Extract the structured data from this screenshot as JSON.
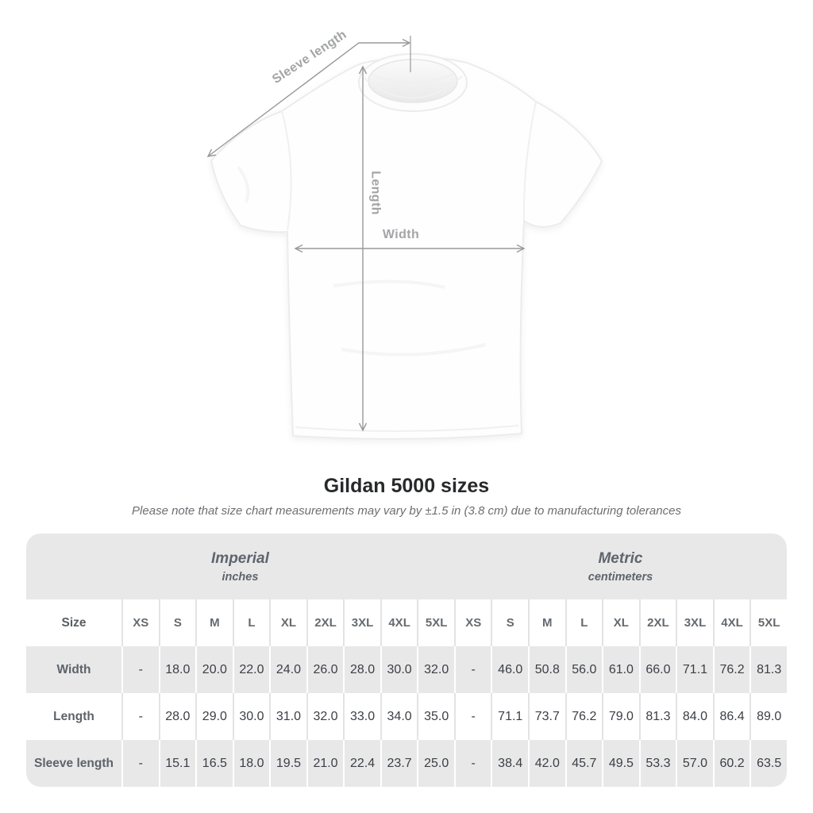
{
  "title": "Gildan 5000 sizes",
  "subtitle": "Please note that size chart measurements may vary by ±1.5 in (3.8 cm) due to manufacturing tolerances",
  "diagram": {
    "sleeve_label": "Sleeve length",
    "length_label": "Length",
    "width_label": "Width"
  },
  "colors": {
    "row_stripe": "#e8e8e8",
    "separator_on_white": "#e3e3e3",
    "separator_on_gray": "#ffffff",
    "header_text": "#5d666c",
    "value_text": "#3b4045",
    "measure_line": "#97999c",
    "measure_label": "#a2a4a6"
  },
  "chart_data": {
    "type": "table",
    "title": "Gildan 5000 sizes",
    "subtitle": "Please note that size chart measurements may vary by ±1.5 in (3.8 cm) due to manufacturing tolerances",
    "size_label": "Size",
    "column_groups": [
      {
        "label": "Imperial",
        "unit": "inches",
        "columns": [
          "XS",
          "S",
          "M",
          "L",
          "XL",
          "2XL",
          "3XL",
          "4XL",
          "5XL"
        ]
      },
      {
        "label": "Metric",
        "unit": "centimeters",
        "columns": [
          "XS",
          "S",
          "M",
          "L",
          "XL",
          "2XL",
          "3XL",
          "4XL",
          "5XL"
        ]
      }
    ],
    "rows": [
      {
        "label": "Width",
        "imperial": [
          "-",
          "18.0",
          "20.0",
          "22.0",
          "24.0",
          "26.0",
          "28.0",
          "30.0",
          "32.0"
        ],
        "metric": [
          "-",
          "46.0",
          "50.8",
          "56.0",
          "61.0",
          "66.0",
          "71.1",
          "76.2",
          "81.3"
        ]
      },
      {
        "label": "Length",
        "imperial": [
          "-",
          "28.0",
          "29.0",
          "30.0",
          "31.0",
          "32.0",
          "33.0",
          "34.0",
          "35.0"
        ],
        "metric": [
          "-",
          "71.1",
          "73.7",
          "76.2",
          "79.0",
          "81.3",
          "84.0",
          "86.4",
          "89.0"
        ]
      },
      {
        "label": "Sleeve length",
        "imperial": [
          "-",
          "15.1",
          "16.5",
          "18.0",
          "19.5",
          "21.0",
          "22.4",
          "23.7",
          "25.0"
        ],
        "metric": [
          "-",
          "38.4",
          "42.0",
          "45.7",
          "49.5",
          "53.3",
          "57.0",
          "60.2",
          "63.5"
        ]
      }
    ]
  }
}
